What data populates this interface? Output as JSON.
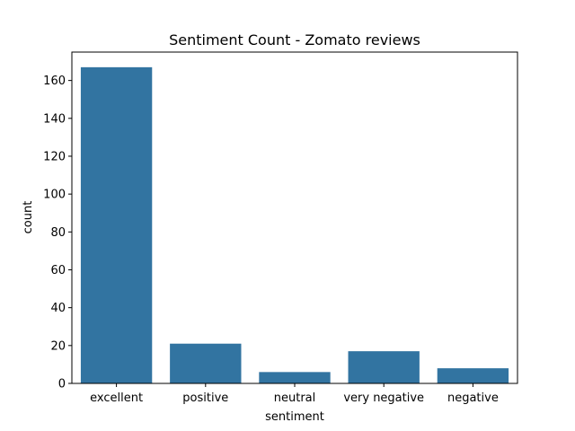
{
  "chart_data": {
    "type": "bar",
    "title": "Sentiment Count - Zomato reviews",
    "xlabel": "sentiment",
    "ylabel": "count",
    "categories": [
      "excellent",
      "positive",
      "neutral",
      "very negative",
      "negative"
    ],
    "values": [
      167,
      21,
      6,
      17,
      8
    ],
    "ylim": [
      0,
      175
    ],
    "yticks": [
      0,
      20,
      40,
      60,
      80,
      100,
      120,
      140,
      160
    ],
    "grid": false,
    "bar_color": "#3274a1"
  }
}
